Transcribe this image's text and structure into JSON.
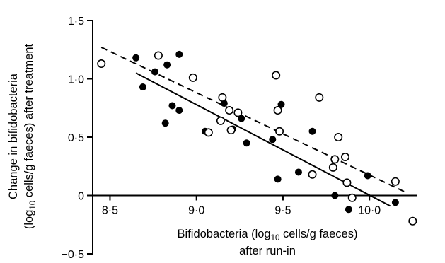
{
  "chart_data": {
    "type": "scatter",
    "xlabel": {
      "line1_prefix": "Bifidobacteria (log",
      "line1_sub": "10",
      "line1_suffix": " cells/g faeces)",
      "line2": "after run-in"
    },
    "ylabel": {
      "line1": "Change in bifidobacteria",
      "line2_prefix": "(log",
      "line2_sub": "10",
      "line2_suffix": " cells/g faeces) after treatment"
    },
    "xlim": [
      8.4,
      10.4
    ],
    "ylim": [
      -0.5,
      1.5
    ],
    "x_ticks": [
      {
        "value": 8.5,
        "label": "8·5"
      },
      {
        "value": 9.0,
        "label": "9·0"
      },
      {
        "value": 9.5,
        "label": "9·5"
      },
      {
        "value": 10.0,
        "label": "10·0"
      }
    ],
    "y_ticks": [
      {
        "value": 1.5,
        "label": "1·5"
      },
      {
        "value": 1.0,
        "label": "1·0"
      },
      {
        "value": 0.5,
        "label": "0·5"
      },
      {
        "value": 0.0,
        "label": "0"
      },
      {
        "value": -0.5,
        "label": "−0·5"
      }
    ],
    "grid": false,
    "series": [
      {
        "marker": "filled-circle",
        "color": "#000000",
        "points": [
          {
            "x": 8.65,
            "y": 1.18
          },
          {
            "x": 8.69,
            "y": 0.93
          },
          {
            "x": 8.76,
            "y": 1.06
          },
          {
            "x": 8.82,
            "y": 0.62
          },
          {
            "x": 8.83,
            "y": 1.12
          },
          {
            "x": 8.86,
            "y": 0.77
          },
          {
            "x": 8.9,
            "y": 1.21
          },
          {
            "x": 8.9,
            "y": 0.73
          },
          {
            "x": 9.05,
            "y": 0.55
          },
          {
            "x": 9.16,
            "y": 0.79
          },
          {
            "x": 9.21,
            "y": 0.57
          },
          {
            "x": 9.26,
            "y": 0.66
          },
          {
            "x": 9.29,
            "y": 0.45
          },
          {
            "x": 9.44,
            "y": 0.48
          },
          {
            "x": 9.47,
            "y": 0.14
          },
          {
            "x": 9.49,
            "y": 0.78
          },
          {
            "x": 9.59,
            "y": 0.2
          },
          {
            "x": 9.67,
            "y": 0.55
          },
          {
            "x": 9.8,
            "y": 0.0
          },
          {
            "x": 9.88,
            "y": -0.12
          },
          {
            "x": 9.99,
            "y": 0.17
          },
          {
            "x": 10.15,
            "y": -0.06
          }
        ]
      },
      {
        "marker": "open-circle",
        "color": "#000000",
        "points": [
          {
            "x": 8.45,
            "y": 1.13
          },
          {
            "x": 8.78,
            "y": 1.2
          },
          {
            "x": 8.98,
            "y": 1.01
          },
          {
            "x": 9.07,
            "y": 0.54
          },
          {
            "x": 9.14,
            "y": 0.64
          },
          {
            "x": 9.15,
            "y": 0.84
          },
          {
            "x": 9.19,
            "y": 0.73
          },
          {
            "x": 9.2,
            "y": 0.56
          },
          {
            "x": 9.24,
            "y": 0.71
          },
          {
            "x": 9.46,
            "y": 1.03
          },
          {
            "x": 9.47,
            "y": 0.73
          },
          {
            "x": 9.48,
            "y": 0.55
          },
          {
            "x": 9.67,
            "y": 0.18
          },
          {
            "x": 9.71,
            "y": 0.84
          },
          {
            "x": 9.79,
            "y": 0.24
          },
          {
            "x": 9.8,
            "y": 0.31
          },
          {
            "x": 9.82,
            "y": 0.5
          },
          {
            "x": 9.86,
            "y": 0.33
          },
          {
            "x": 9.87,
            "y": 0.11
          },
          {
            "x": 9.9,
            "y": -0.02
          },
          {
            "x": 10.15,
            "y": 0.12
          },
          {
            "x": 10.25,
            "y": -0.22
          }
        ]
      }
    ],
    "regression_lines": [
      {
        "style": "solid",
        "x1": 8.65,
        "y1": 1.05,
        "x2": 10.12,
        "y2": -0.09
      },
      {
        "style": "dashed",
        "x1": 8.45,
        "y1": 1.27,
        "x2": 10.22,
        "y2": 0.02
      }
    ]
  }
}
